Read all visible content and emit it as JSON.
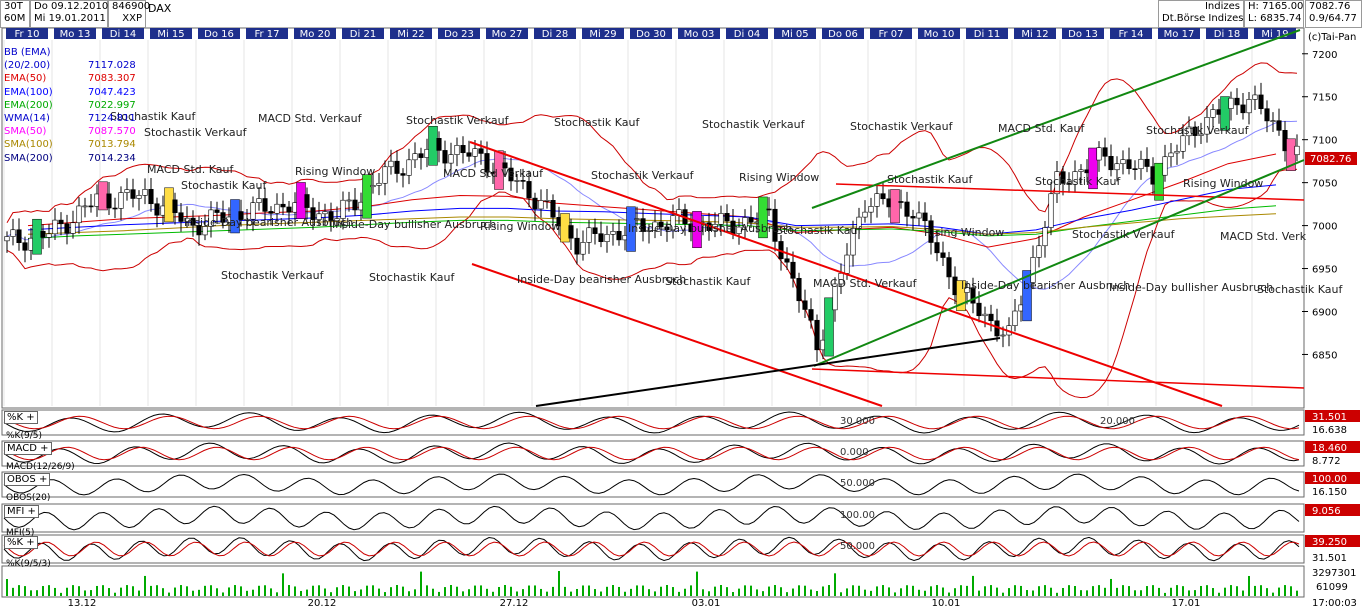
{
  "header": {
    "timeframe": "30T",
    "interval": "60M",
    "date_from": "Do 09.12.2010",
    "date_to": "Mi 19.01.2011",
    "id": "846900",
    "symbol": "DAX",
    "exchange": "XXP",
    "category": "Indizes",
    "market": "Dt.Börse Indizes",
    "high": "H: 7165.00",
    "low": "L: 6835.74",
    "last": "7082.76",
    "change": "0.9/64.77",
    "copyright": "(c)Tai-Pan"
  },
  "colors": {
    "background": "#ffffff",
    "day_label_bg": "#1e2f8c",
    "bb": "#cc0000",
    "ema50": "#dd0000",
    "ema100": "#0000ff",
    "ema200": "#00bb00",
    "wma14": "#0000cc",
    "sma50": "#ff00ff",
    "sma100": "#aa8800",
    "sma200": "#000080",
    "last_price_bg": "#cc0000",
    "trend_red": "#ee0000",
    "trend_green": "#118811",
    "trend_black": "#000000"
  },
  "legend": [
    {
      "label": "BB (EMA)(20/2.00)",
      "value": "7117.028",
      "color": "#0000cc"
    },
    {
      "label": "EMA(50)",
      "value": "7083.307",
      "color": "#dd0000"
    },
    {
      "label": "EMA(100)",
      "value": "7047.423",
      "color": "#0000ff"
    },
    {
      "label": "EMA(200)",
      "value": "7022.997",
      "color": "#00aa00"
    },
    {
      "label": "WMA(14)",
      "value": "7124.811",
      "color": "#0000cc"
    },
    {
      "label": "SMA(50)",
      "value": "7087.570",
      "color": "#ff00ff"
    },
    {
      "label": "SMA(100)",
      "value": "7013.794",
      "color": "#aa8800"
    },
    {
      "label": "SMA(200)",
      "value": "7014.234",
      "color": "#000080"
    }
  ],
  "day_labels": [
    "Fr 10",
    "Mo 13",
    "Di 14",
    "Mi 15",
    "Do 16",
    "Fr 17",
    "Mo 20",
    "Di 21",
    "Mi 22",
    "Do 23",
    "Mo 27",
    "Di 28",
    "Mi 29",
    "Do 30",
    "Mo 03",
    "Di 04",
    "Mi 05",
    "Do 06",
    "Fr 07",
    "Mo 10",
    "Di 11",
    "Mi 12",
    "Do 13",
    "Fr 14",
    "Mo 17",
    "Di 18",
    "Mi 19"
  ],
  "annotations": [
    "Stochastik Kauf",
    "MACD Std. Kauf",
    "Inside-Day bearisher Ausbruch",
    "Stochastik Verkauf",
    "MACD Std. Verkauf",
    "Rising Window",
    "Inside-Day bullisher Ausbruch",
    "Stochastik Kauf",
    "Stochastik Verkauf",
    "MACD Std Verkauf",
    "Rising Window",
    "Inside-Day bearisher Ausbruch",
    "Stochastik Kauf",
    "Stochastik Verkauf",
    "Inside-Day bullisher Ausbruch",
    "Stochastik Kauf",
    "Stochastik Verkauf",
    "Rising Window",
    "Stochastik Kauf",
    "MACD Std. Verkauf",
    "Stochastik Verkauf",
    "Stochastik Kauf",
    "Rising Window",
    "Inside-Day bearisher Ausbruch",
    "MACD Std. Kauf",
    "Stochastik Kauf",
    "Stochastik Verkauf",
    "Inside-Day bullisher Ausbruch",
    "Stochastik Verkauf",
    "Rising Window",
    "MACD Std. Verk",
    "Stochastik Kauf",
    "Stochastik Verkauf",
    "Stochastik Kauf"
  ],
  "indicators": [
    {
      "name": "%K",
      "sub": "%K(9/5)",
      "level": "30.000",
      "level2": "20.000",
      "value1": "31.501",
      "value2": "16.638"
    },
    {
      "name": "MACD",
      "sub": "MACD(12/26/9)",
      "level": "0.000",
      "value1": "18.460",
      "value2": "8.772"
    },
    {
      "name": "OBOS",
      "sub": "OBOS(20)",
      "level": "50.000",
      "value1": "100.00",
      "value2": "16.150"
    },
    {
      "name": "MFI",
      "sub": "MFI(5)",
      "level": "100.00",
      "value1": "9.056"
    },
    {
      "name": "%K",
      "sub": "%K(9/5/3)",
      "level": "50.000",
      "value1": "39.250",
      "value2": "31.501"
    }
  ],
  "volume": {
    "top": "3297301",
    "bottom": "61099"
  },
  "x_axis": {
    "labels": [
      "13.12",
      "20.12",
      "27.12",
      "03.01",
      "10.01",
      "17.01"
    ],
    "time": "17:00:03"
  },
  "chart_data": {
    "type": "candlestick",
    "title": "DAX",
    "ylim": [
      6790,
      7230
    ],
    "y_ticks": [
      6850,
      6900,
      6950,
      7000,
      7050,
      7100,
      7150,
      7200
    ],
    "last_price": 7082.76,
    "categories": [
      "Fr 10",
      "Mo 13",
      "Di 14",
      "Mi 15",
      "Do 16",
      "Fr 17",
      "Mo 20",
      "Di 21",
      "Mi 22",
      "Do 23",
      "Mo 27",
      "Di 28",
      "Mi 29",
      "Do 30",
      "Mo 03",
      "Di 04",
      "Mi 05",
      "Do 06",
      "Fr 07",
      "Mo 10",
      "Di 11",
      "Mi 12",
      "Do 13",
      "Fr 14",
      "Mo 17",
      "Di 18",
      "Mi 19"
    ],
    "close_per_day": [
      6990,
      7030,
      7035,
      7000,
      7015,
      7025,
      7010,
      7060,
      7090,
      7080,
      7040,
      6980,
      6995,
      7005,
      7000,
      7010,
      6860,
      7030,
      7020,
      6920,
      6870,
      7050,
      7080,
      7060,
      7120,
      7150,
      7082.76
    ],
    "series": [
      {
        "name": "EMA(50)",
        "values": [
          7000,
          7004,
          7008,
          7010,
          7012,
          7015,
          7017,
          7022,
          7030,
          7035,
          7034,
          7026,
          7022,
          7018,
          7014,
          7010,
          6992,
          6995,
          6998,
          6990,
          6975,
          6985,
          7010,
          7030,
          7050,
          7072,
          7083.307
        ]
      },
      {
        "name": "EMA(100)",
        "values": [
          6995,
          6998,
          7001,
          7003,
          7005,
          7007,
          7009,
          7012,
          7017,
          7020,
          7020,
          7017,
          7016,
          7014,
          7012,
          7010,
          7000,
          7001,
          7002,
          6998,
          6990,
          6995,
          7008,
          7018,
          7030,
          7042,
          7047.423
        ]
      },
      {
        "name": "EMA(200)",
        "values": [
          6985,
          6988,
          6990,
          6992,
          6994,
          6996,
          6998,
          7001,
          7004,
          7006,
          7006,
          7004,
          7003,
          7002,
          7001,
          7000,
          6994,
          6995,
          6996,
          6993,
          6988,
          6990,
          6998,
          7005,
          7012,
          7019,
          7022.997
        ]
      },
      {
        "name": "SMA(100)",
        "values": [
          6990,
          6992,
          6994,
          6997,
          7000,
          7002,
          7004,
          7006,
          7008,
          7010,
          7010,
          7008,
          7007,
          7006,
          7005,
          7003,
          6998,
          6998,
          6999,
          6995,
          6990,
          6992,
          6998,
          7003,
          7008,
          7011,
          7013.794
        ]
      }
    ]
  }
}
